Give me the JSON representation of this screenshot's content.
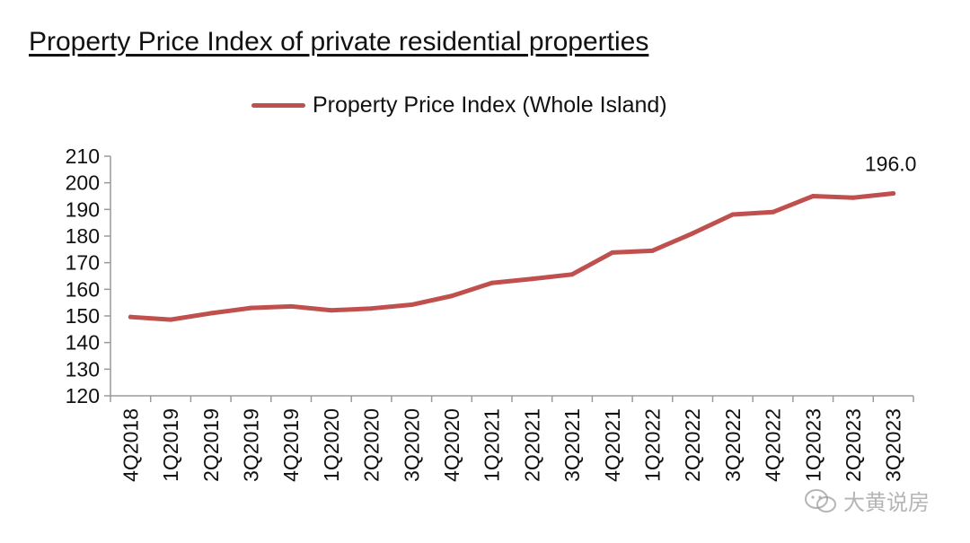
{
  "page": {
    "title": "Property Price Index of private residential properties"
  },
  "colors": {
    "series": "#c0504d",
    "axis": "#9a9a9a",
    "text": "#111111"
  },
  "watermark": {
    "text": "大黄说房",
    "icon": "wechat-icon"
  },
  "chart_data": {
    "type": "line",
    "title": "Property Price Index of private residential properties",
    "legend_position": "top",
    "grid": false,
    "xlabel": "",
    "ylabel": "",
    "ylim": [
      120,
      210
    ],
    "y_ticks": [
      120,
      130,
      140,
      150,
      160,
      170,
      180,
      190,
      200,
      210
    ],
    "categories": [
      "4Q2018",
      "1Q2019",
      "2Q2019",
      "3Q2019",
      "4Q2019",
      "1Q2020",
      "2Q2020",
      "3Q2020",
      "4Q2020",
      "1Q2021",
      "2Q2021",
      "3Q2021",
      "4Q2021",
      "1Q2022",
      "2Q2022",
      "3Q2022",
      "4Q2022",
      "1Q2023",
      "2Q2023",
      "3Q2023"
    ],
    "series": [
      {
        "name": "Property Price Index (Whole Island)",
        "values": [
          149.6,
          148.6,
          151.0,
          153.0,
          153.6,
          152.1,
          152.8,
          154.2,
          157.5,
          162.4,
          163.9,
          165.6,
          173.8,
          174.5,
          181.0,
          188.1,
          189.0,
          195.0,
          194.4,
          196.0
        ]
      }
    ],
    "annotations": [
      {
        "index": 19,
        "text": "196.0"
      }
    ]
  }
}
